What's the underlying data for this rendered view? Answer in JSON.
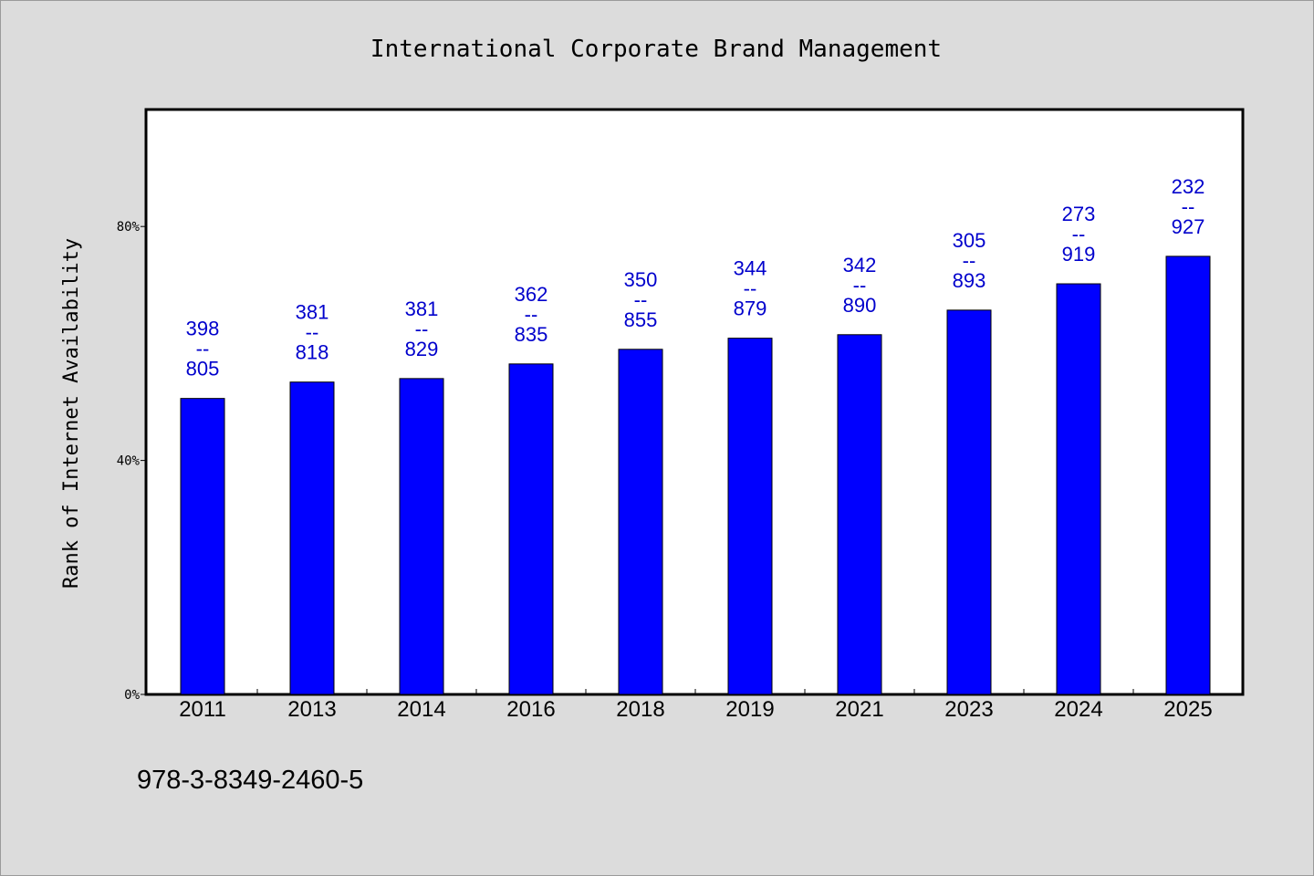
{
  "chart_data": {
    "type": "bar",
    "title": "International Corporate Brand Management",
    "xlabel": "",
    "ylabel": "Rank of Internet Availability",
    "categories": [
      "2011",
      "2013",
      "2014",
      "2016",
      "2018",
      "2019",
      "2021",
      "2023",
      "2024",
      "2025"
    ],
    "values": [
      50.6,
      53.4,
      54.0,
      56.5,
      59.0,
      60.9,
      61.5,
      65.7,
      70.2,
      74.9
    ],
    "data_labels": [
      [
        "398",
        "--",
        "805"
      ],
      [
        "381",
        "--",
        "818"
      ],
      [
        "381",
        "--",
        "829"
      ],
      [
        "362",
        "--",
        "835"
      ],
      [
        "350",
        "--",
        "855"
      ],
      [
        "344",
        "--",
        "879"
      ],
      [
        "342",
        "--",
        "890"
      ],
      [
        "305",
        "--",
        "893"
      ],
      [
        "273",
        "--",
        "919"
      ],
      [
        "232",
        "--",
        "927"
      ]
    ],
    "ylim": [
      0,
      100
    ],
    "yticks": [
      0,
      40,
      80
    ],
    "ytick_labels": [
      "0%",
      "40%",
      "80%"
    ],
    "grid": false,
    "legend": "none",
    "colors": {
      "bar": "#0000ff",
      "data_label": "#0000cc",
      "plot_background": "#ffffff",
      "page_background": "#dcdcdc"
    }
  },
  "footer": {
    "isbn": "978-3-8349-2460-5"
  }
}
